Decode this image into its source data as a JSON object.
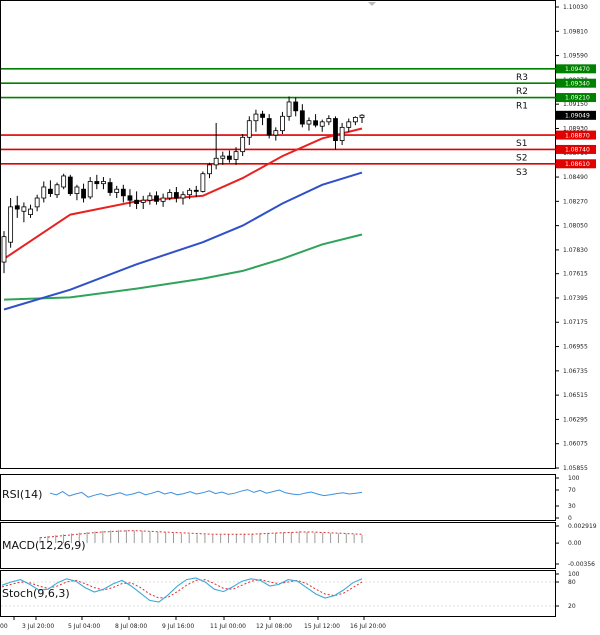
{
  "chart_data": {
    "type": "candlestick",
    "price_axis": {
      "ticks": [
        "1.10030",
        "1.09810",
        "1.09590",
        "1.09370",
        "1.09150",
        "1.08930",
        "1.08710",
        "1.08490",
        "1.08270",
        "1.08050",
        "1.07830",
        "1.07615",
        "1.07395",
        "1.07175",
        "1.06955",
        "1.06735",
        "1.06515",
        "1.06295",
        "1.06075",
        "1.05855"
      ],
      "ylim": [
        1.05855,
        1.1003
      ]
    },
    "time_axis": {
      "labels": [
        "00",
        "3 Jul 20:00",
        "5 Jul 04:00",
        "8 Jul 08:00",
        "9 Jul 16:00",
        "11 Jul 00:00",
        "12 Jul 08:00",
        "15 Jul 12:00",
        "16 Jul 20:00"
      ]
    },
    "levels": [
      {
        "name": "R3",
        "value": "1.09470",
        "color": "#008000"
      },
      {
        "name": "R2",
        "value": "1.09340",
        "color": "#008000"
      },
      {
        "name": "R1",
        "value": "1.09210",
        "color": "#008000"
      },
      {
        "name": "S1",
        "value": "1.08870",
        "color": "#e00000"
      },
      {
        "name": "S2",
        "value": "1.08740",
        "color": "#e00000"
      },
      {
        "name": "S3",
        "value": "1.08610",
        "color": "#e00000"
      }
    ],
    "current_price": "1.09049",
    "candles": [
      [
        1.0772,
        1.08,
        1.0762,
        1.0795
      ],
      [
        1.079,
        1.083,
        1.0785,
        1.0822
      ],
      [
        1.0823,
        1.0832,
        1.0812,
        1.082
      ],
      [
        1.0818,
        1.0826,
        1.0808,
        1.0822
      ],
      [
        1.0815,
        1.0824,
        1.0812,
        1.082
      ],
      [
        1.0822,
        1.0833,
        1.0818,
        1.083
      ],
      [
        1.083,
        1.0845,
        1.0826,
        1.084
      ],
      [
        1.0838,
        1.0846,
        1.0831,
        1.0834
      ],
      [
        1.0833,
        1.0844,
        1.083,
        1.0842
      ],
      [
        1.084,
        1.0852,
        1.0838,
        1.085
      ],
      [
        1.0849,
        1.0851,
        1.0832,
        1.0834
      ],
      [
        1.0834,
        1.0842,
        1.0828,
        1.084
      ],
      [
        1.0838,
        1.0843,
        1.0826,
        1.083
      ],
      [
        1.0831,
        1.0849,
        1.0829,
        1.0845
      ],
      [
        1.0845,
        1.0851,
        1.0838,
        1.0843
      ],
      [
        1.0843,
        1.0849,
        1.0838,
        1.0845
      ],
      [
        1.0844,
        1.0848,
        1.0832,
        1.0835
      ],
      [
        1.0835,
        1.0841,
        1.083,
        1.0838
      ],
      [
        1.0838,
        1.0842,
        1.0826,
        1.0832
      ],
      [
        1.0832,
        1.0838,
        1.0822,
        1.0828
      ],
      [
        1.0828,
        1.0836,
        1.082,
        1.0825
      ],
      [
        1.0826,
        1.0832,
        1.082,
        1.0828
      ],
      [
        1.0828,
        1.0835,
        1.0824,
        1.0832
      ],
      [
        1.0832,
        1.0836,
        1.0824,
        1.0827
      ],
      [
        1.0827,
        1.0834,
        1.0822,
        1.083
      ],
      [
        1.083,
        1.0838,
        1.0828,
        1.0835
      ],
      [
        1.0835,
        1.084,
        1.0826,
        1.083
      ],
      [
        1.083,
        1.0836,
        1.0824,
        1.0833
      ],
      [
        1.0833,
        1.0839,
        1.0829,
        1.0837
      ],
      [
        1.0837,
        1.0841,
        1.0831,
        1.0836
      ],
      [
        1.0836,
        1.0854,
        1.0835,
        1.0852
      ],
      [
        1.0852,
        1.0862,
        1.0848,
        1.086
      ],
      [
        1.086,
        1.0898,
        1.0856,
        1.0866
      ],
      [
        1.0866,
        1.0872,
        1.086,
        1.0868
      ],
      [
        1.0868,
        1.0873,
        1.0862,
        1.0865
      ],
      [
        1.0865,
        1.0876,
        1.086,
        1.0872
      ],
      [
        1.0872,
        1.0888,
        1.0868,
        1.0885
      ],
      [
        1.0885,
        1.0904,
        1.0878,
        1.09
      ],
      [
        1.09,
        1.091,
        1.089,
        1.0906
      ],
      [
        1.0906,
        1.0909,
        1.0896,
        1.0903
      ],
      [
        1.0902,
        1.0906,
        1.0884,
        1.0887
      ],
      [
        1.0887,
        1.0894,
        1.0882,
        1.0891
      ],
      [
        1.0891,
        1.0908,
        1.0888,
        1.0904
      ],
      [
        1.0904,
        1.0922,
        1.09,
        1.0917
      ],
      [
        1.0917,
        1.0921,
        1.0904,
        1.0909
      ],
      [
        1.0909,
        1.0915,
        1.0894,
        1.0897
      ],
      [
        1.0897,
        1.0903,
        1.0891,
        1.09
      ],
      [
        1.09,
        1.0906,
        1.0894,
        1.0896
      ],
      [
        1.0895,
        1.0901,
        1.089,
        1.0899
      ],
      [
        1.0899,
        1.0905,
        1.0896,
        1.0902
      ],
      [
        1.0902,
        1.0904,
        1.0874,
        1.0882
      ],
      [
        1.0882,
        1.0898,
        1.0878,
        1.0894
      ],
      [
        1.0894,
        1.0902,
        1.089,
        1.0899
      ],
      [
        1.0899,
        1.0904,
        1.0896,
        1.0903
      ],
      [
        1.0903,
        1.0906,
        1.0898,
        1.0905
      ]
    ],
    "ma_fast": [
      [
        0,
        1.0775
      ],
      [
        10,
        1.0815
      ],
      [
        20,
        1.0827
      ],
      [
        30,
        1.0832
      ],
      [
        36,
        1.0848
      ],
      [
        42,
        1.0868
      ],
      [
        48,
        1.0884
      ],
      [
        54,
        1.0893
      ]
    ],
    "ma_mid": [
      [
        0,
        1.0729
      ],
      [
        10,
        1.0747
      ],
      [
        20,
        1.077
      ],
      [
        30,
        1.079
      ],
      [
        36,
        1.0805
      ],
      [
        42,
        1.0825
      ],
      [
        48,
        1.0842
      ],
      [
        54,
        1.0853
      ]
    ],
    "ma_slow": [
      [
        0,
        1.0738
      ],
      [
        10,
        1.074
      ],
      [
        20,
        1.0748
      ],
      [
        30,
        1.0757
      ],
      [
        36,
        1.0764
      ],
      [
        42,
        1.0775
      ],
      [
        48,
        1.0788
      ],
      [
        54,
        1.0797
      ]
    ],
    "indicators": {
      "rsi": {
        "label": "RSI(14)",
        "ticks": [
          "100",
          "70",
          "30",
          "0"
        ],
        "values": [
          62,
          58,
          66,
          55,
          60,
          64,
          52,
          57,
          61,
          55,
          59,
          63,
          57,
          60,
          65,
          58,
          62,
          67,
          60,
          64,
          58,
          61,
          66,
          60,
          63,
          68,
          61,
          65,
          59,
          62,
          67,
          71,
          64,
          69,
          62,
          66,
          70,
          63,
          60,
          58,
          62,
          65,
          60,
          56,
          58,
          61,
          63,
          60,
          62,
          64
        ]
      },
      "macd": {
        "label": "MACD(12,26,9)",
        "ticks": [
          "0.002919",
          "0.00",
          "-0.00356"
        ],
        "hist": [
          0.00105,
          0.0012,
          0.00135,
          0.0015,
          0.00165,
          0.0018,
          0.0019,
          0.002,
          0.0021,
          0.00215,
          0.0022,
          0.0022,
          0.00215,
          0.0021,
          0.002,
          0.0019,
          0.0018,
          0.0017,
          0.0016,
          0.00155,
          0.0015,
          0.00145,
          0.0014,
          0.0014,
          0.00145,
          0.0015,
          0.0016,
          0.00165,
          0.0017,
          0.00175,
          0.0018,
          0.00185,
          0.0019,
          0.002,
          0.0019,
          0.0018,
          0.00175,
          0.0017,
          0.00165,
          0.0016,
          0.0015,
          0.0014
        ],
        "signal": [
          0.0009,
          0.0011,
          0.0013,
          0.0015,
          0.0017,
          0.0019,
          0.002,
          0.0021,
          0.0021,
          0.002,
          0.0019,
          0.0018,
          0.0017,
          0.0016,
          0.0015,
          0.0015,
          0.0015,
          0.0015,
          0.0016,
          0.0017,
          0.0018,
          0.0019,
          0.0019,
          0.0018,
          0.0017,
          0.0016,
          0.0015
        ]
      },
      "stoch": {
        "label": "Stoch(9,6,3)",
        "ticks": [
          "100",
          "80",
          "20"
        ],
        "k": [
          72,
          80,
          86,
          74,
          60,
          62,
          78,
          88,
          82,
          66,
          55,
          62,
          75,
          84,
          70,
          52,
          34,
          30,
          48,
          70,
          86,
          90,
          80,
          62,
          56,
          68,
          82,
          88,
          84,
          70,
          74,
          86,
          82,
          66,
          50,
          40,
          46,
          60,
          78,
          88
        ],
        "d": [
          68,
          74,
          80,
          78,
          70,
          64,
          70,
          80,
          84,
          76,
          66,
          60,
          66,
          76,
          78,
          66,
          50,
          40,
          42,
          56,
          72,
          84,
          86,
          76,
          64,
          62,
          72,
          82,
          86,
          80,
          76,
          80,
          84,
          76,
          62,
          50,
          46,
          52,
          66,
          80
        ]
      }
    }
  }
}
